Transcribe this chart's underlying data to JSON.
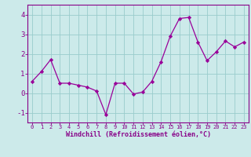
{
  "x": [
    0,
    1,
    2,
    3,
    4,
    5,
    6,
    7,
    8,
    9,
    10,
    11,
    12,
    13,
    14,
    15,
    16,
    17,
    18,
    19,
    20,
    21,
    22,
    23
  ],
  "y": [
    0.6,
    1.1,
    1.7,
    0.5,
    0.5,
    0.4,
    0.3,
    0.1,
    -1.1,
    0.5,
    0.5,
    -0.05,
    0.05,
    0.6,
    1.6,
    2.9,
    3.8,
    3.85,
    2.6,
    1.65,
    2.1,
    2.65,
    2.35,
    2.6
  ],
  "line_color": "#990099",
  "marker": "D",
  "markersize": 2.2,
  "linewidth": 0.9,
  "xlabel": "Windchill (Refroidissement éolien,°C)",
  "xlim": [
    -0.5,
    23.5
  ],
  "ylim": [
    -1.5,
    4.5
  ],
  "yticks": [
    -1,
    0,
    1,
    2,
    3,
    4
  ],
  "xticks": [
    0,
    1,
    2,
    3,
    4,
    5,
    6,
    7,
    8,
    9,
    10,
    11,
    12,
    13,
    14,
    15,
    16,
    17,
    18,
    19,
    20,
    21,
    22,
    23
  ],
  "bg_color": "#cceaea",
  "grid_color": "#99cccc",
  "axis_color": "#880088",
  "tick_color": "#880088",
  "label_color": "#880088",
  "xlabel_fontsize": 6.0,
  "ytick_fontsize": 6.5,
  "xtick_fontsize": 5.0
}
